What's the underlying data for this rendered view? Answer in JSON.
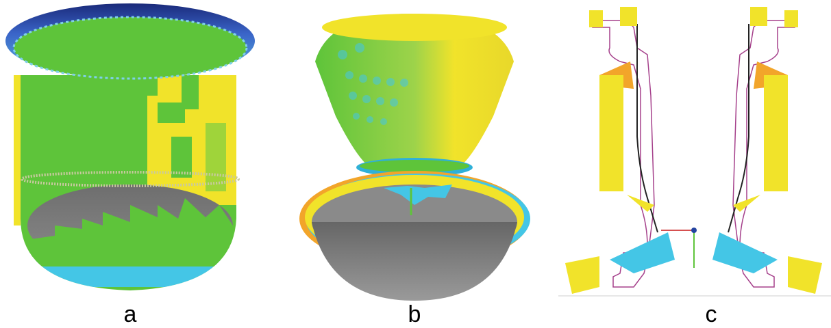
{
  "panels": [
    {
      "label": "a",
      "subject": "cylindrical-shell-deviation-map"
    },
    {
      "label": "b",
      "subject": "flared-nozzle-deviation-map"
    },
    {
      "label": "c",
      "subject": "cross-section-deviation-profile"
    }
  ],
  "colors": {
    "green": "#5ec43a",
    "yellow": "#f1e32a",
    "cyan": "#44c6e6",
    "blue": "#2343a0",
    "orange": "#f2a52a",
    "gray": "#7d7d7d",
    "magenta": "#a5408b"
  }
}
